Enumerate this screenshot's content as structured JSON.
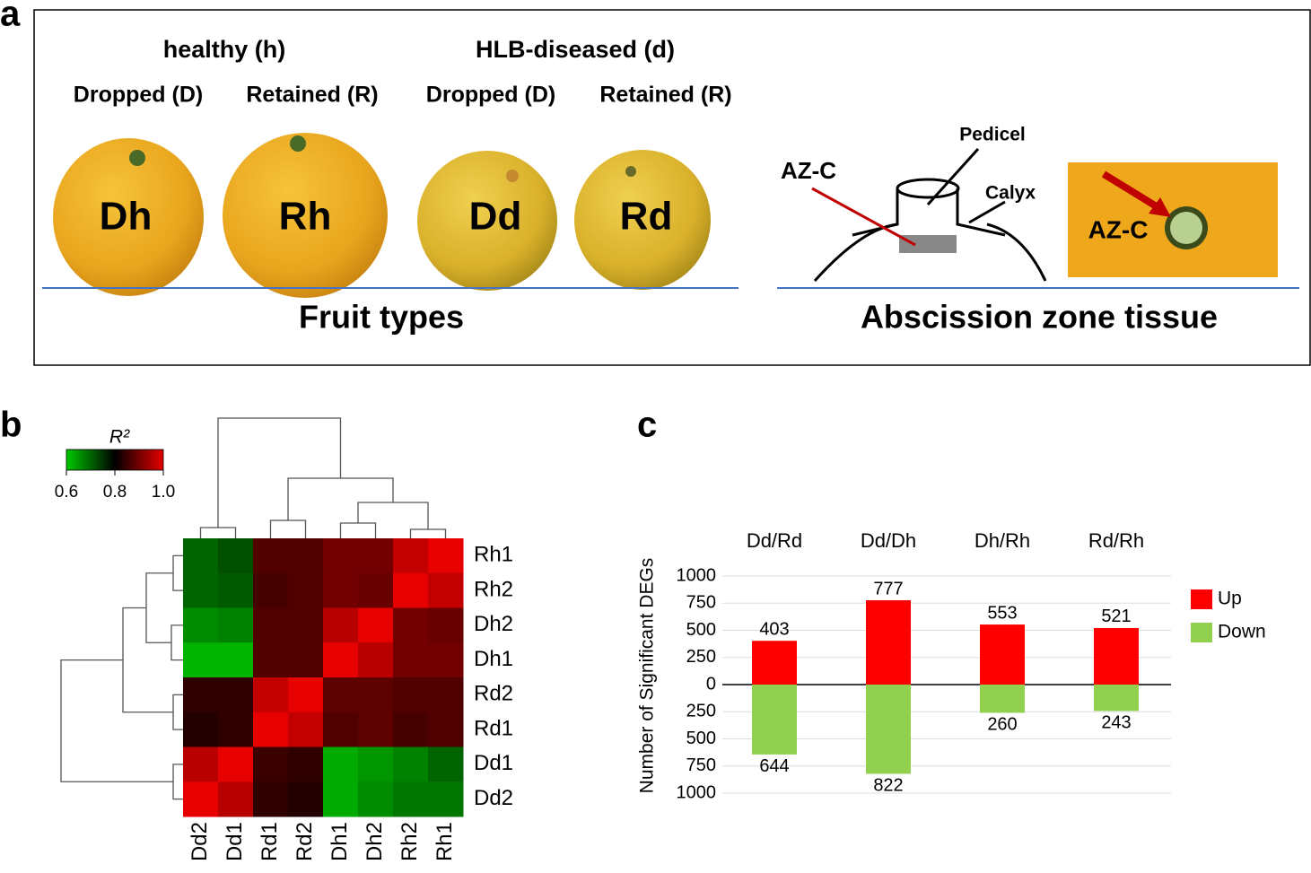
{
  "panel_letters": [
    "a",
    "b",
    "c"
  ],
  "panel_a": {
    "groups": [
      "healthy (h)",
      "HLB-diseased (d)"
    ],
    "subgroups": [
      "Dropped (D)",
      "Retained (R)",
      "Dropped (D)",
      "Retained (R)"
    ],
    "fruits": [
      "Dh",
      "Rh",
      "Dd",
      "Rd"
    ],
    "diagram_labels": [
      "Pedicel",
      "AZ-C",
      "Calyx"
    ],
    "photo_label": "AZ-C",
    "sections": [
      "Fruit types",
      "Abscission zone tissue"
    ]
  },
  "chart_data": [
    {
      "type": "heatmap",
      "rows": [
        "Rh1",
        "Rh2",
        "Dh2",
        "Dh1",
        "Rd2",
        "Rd1",
        "Dd1",
        "Dd2"
      ],
      "columns": [
        "Dd2",
        "Dd1",
        "Rd1",
        "Rd2",
        "Dh1",
        "Dh2",
        "Rh2",
        "Rh1"
      ],
      "values": [
        [
          0.7,
          0.72,
          0.87,
          0.87,
          0.9,
          0.9,
          0.97,
          1.0
        ],
        [
          0.7,
          0.71,
          0.86,
          0.87,
          0.9,
          0.89,
          1.0,
          0.97
        ],
        [
          0.66,
          0.67,
          0.87,
          0.87,
          0.96,
          1.0,
          0.9,
          0.89
        ],
        [
          0.62,
          0.62,
          0.87,
          0.87,
          1.0,
          0.96,
          0.9,
          0.9
        ],
        [
          0.84,
          0.84,
          0.97,
          1.0,
          0.88,
          0.88,
          0.87,
          0.87
        ],
        [
          0.83,
          0.84,
          1.0,
          0.97,
          0.87,
          0.88,
          0.86,
          0.87
        ],
        [
          0.96,
          1.0,
          0.85,
          0.84,
          0.63,
          0.65,
          0.67,
          0.7
        ],
        [
          1.0,
          0.96,
          0.84,
          0.83,
          0.63,
          0.66,
          0.68,
          0.68
        ]
      ],
      "colorbar": {
        "title": "R²",
        "lim": [
          0.6,
          1.0
        ],
        "ticks": [
          0.6,
          0.8,
          {
            "value": 1.0,
            "label": "1.0"
          }
        ],
        "colors": [
          "#00c800",
          "#000000",
          "#e60000"
        ]
      }
    },
    {
      "type": "bar",
      "ylabel": "Number of Significant DEGs",
      "categories": [
        "Dd/Rd",
        "Dd/Dh",
        "Dh/Rh",
        "Rd/Rh"
      ],
      "series": [
        {
          "name": "Up",
          "color": "#ff0000",
          "values": [
            403,
            777,
            553,
            521
          ]
        },
        {
          "name": "Down",
          "color": "#92d050",
          "values": [
            -644,
            -822,
            -260,
            -243
          ],
          "value_labels": [
            "644",
            "822",
            "260",
            "243"
          ]
        }
      ],
      "ylim": [
        -1000,
        1000
      ],
      "yticks": [
        1000,
        750,
        500,
        250,
        0,
        {
          "value": -250,
          "label": "250"
        },
        {
          "value": -500,
          "label": "500"
        },
        {
          "value": -750,
          "label": "750"
        },
        {
          "value": -1000,
          "label": "1000"
        }
      ],
      "grid": true,
      "legend": "right"
    }
  ]
}
